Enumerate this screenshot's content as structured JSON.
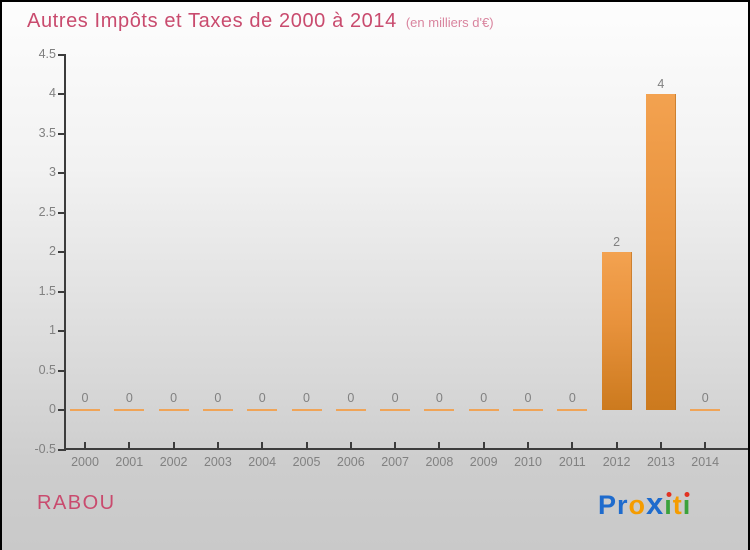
{
  "title": {
    "text": "Autres Impôts et Taxes de 2000 à 2014",
    "subtitle": "(en milliers d'€)"
  },
  "footer": {
    "commune": "RABOU"
  },
  "logo": {
    "brand": "Proxiti",
    "letters": [
      {
        "ch": "P",
        "color": "#1e6bcd"
      },
      {
        "ch": "r",
        "color": "#1e6bcd"
      },
      {
        "ch": "o",
        "color": "#f59c00"
      },
      {
        "ch": "x",
        "color": "#1e6bcd",
        "big": true
      },
      {
        "ch": "i",
        "color": "#3ba23b",
        "dot": "#e23222"
      },
      {
        "ch": "t",
        "color": "#f59c00"
      },
      {
        "ch": "i",
        "color": "#3ba23b",
        "dot": "#e23222"
      }
    ]
  },
  "colors": {
    "title_pink": "#c94b6e",
    "subtitle_pink": "#d9849e",
    "axis": "#3c3c3c",
    "label_gray": "#818181",
    "bar_top": "#f3a250",
    "bar_mid": "#e8923c",
    "bar_bottom": "#cc7a1e",
    "zero_line": "#f0a457"
  },
  "chart_data": {
    "type": "bar",
    "title": "Autres Impôts et Taxes de 2000 à 2014",
    "subtitle": "(en milliers d'€)",
    "xlabel": "",
    "ylabel": "",
    "categories": [
      "2000",
      "2001",
      "2002",
      "2003",
      "2004",
      "2005",
      "2006",
      "2007",
      "2008",
      "2009",
      "2010",
      "2011",
      "2012",
      "2013",
      "2014"
    ],
    "values": [
      0,
      0,
      0,
      0,
      0,
      0,
      0,
      0,
      0,
      0,
      0,
      0,
      2,
      4,
      0
    ],
    "ylim": [
      -0.5,
      4.5
    ],
    "y_ticks": [
      "4.5",
      "4",
      "3.5",
      "3",
      "2.5",
      "2",
      "1.5",
      "1",
      "0.5",
      "0",
      "-0.5"
    ],
    "grid": false,
    "legend": false,
    "bar_value_labels_shown": true
  }
}
